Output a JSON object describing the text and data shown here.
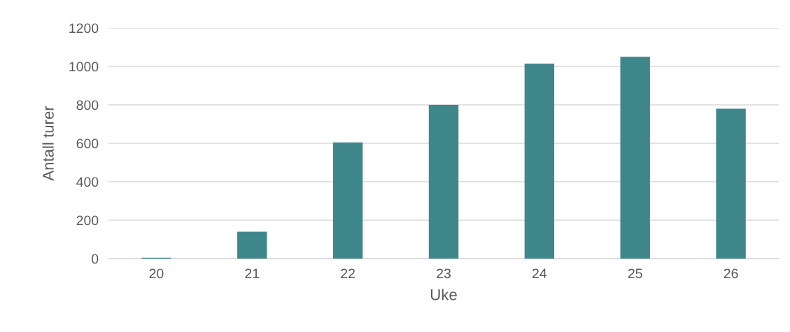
{
  "chart_data": {
    "type": "bar",
    "xlabel": "Uke",
    "ylabel": "Antall turer",
    "categories": [
      "20",
      "21",
      "22",
      "23",
      "24",
      "25",
      "26"
    ],
    "values": [
      5,
      140,
      605,
      800,
      1015,
      1050,
      780
    ],
    "color": "#3f878b",
    "ylim": [
      0,
      1200
    ],
    "yticks": [
      0,
      200,
      400,
      600,
      800,
      1000,
      1200
    ],
    "grid": "y",
    "legend": false
  }
}
